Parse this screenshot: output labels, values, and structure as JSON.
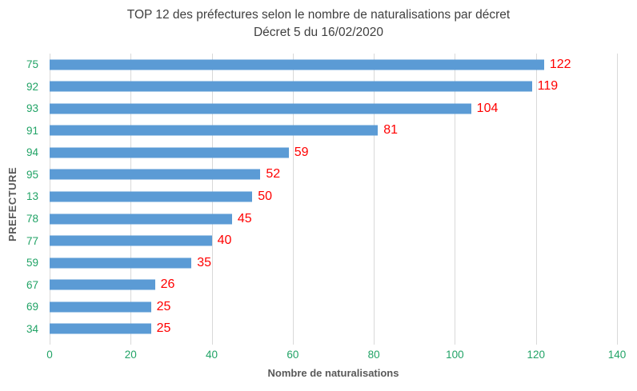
{
  "title": "TOP 12 des préfectures selon le nombre de naturalisations par décret",
  "subtitle": "Décret 5 du 16/02/2020",
  "chart_data": {
    "type": "bar",
    "orientation": "horizontal",
    "title": "TOP 12 des préfectures selon le nombre de naturalisations par décret",
    "subtitle": "Décret 5 du 16/02/2020",
    "categories": [
      "75",
      "92",
      "93",
      "91",
      "94",
      "95",
      "13",
      "78",
      "77",
      "59",
      "67",
      "69",
      "34"
    ],
    "values": [
      122,
      119,
      104,
      81,
      59,
      52,
      50,
      45,
      40,
      35,
      26,
      25,
      25
    ],
    "xlabel": "Nombre de naturalisations",
    "ylabel": "PREFECTURE",
    "xlim": [
      0,
      140
    ],
    "xticks": [
      0,
      20,
      40,
      60,
      80,
      100,
      120,
      140
    ],
    "grid": "vertical",
    "legend": "none",
    "colors": {
      "bar": "#5b9bd5",
      "value_labels": "#ff0000",
      "tick_labels": "#21a366",
      "gridlines": "#d9d9d9",
      "title": "#404040",
      "axis_titles": "#595959"
    }
  }
}
